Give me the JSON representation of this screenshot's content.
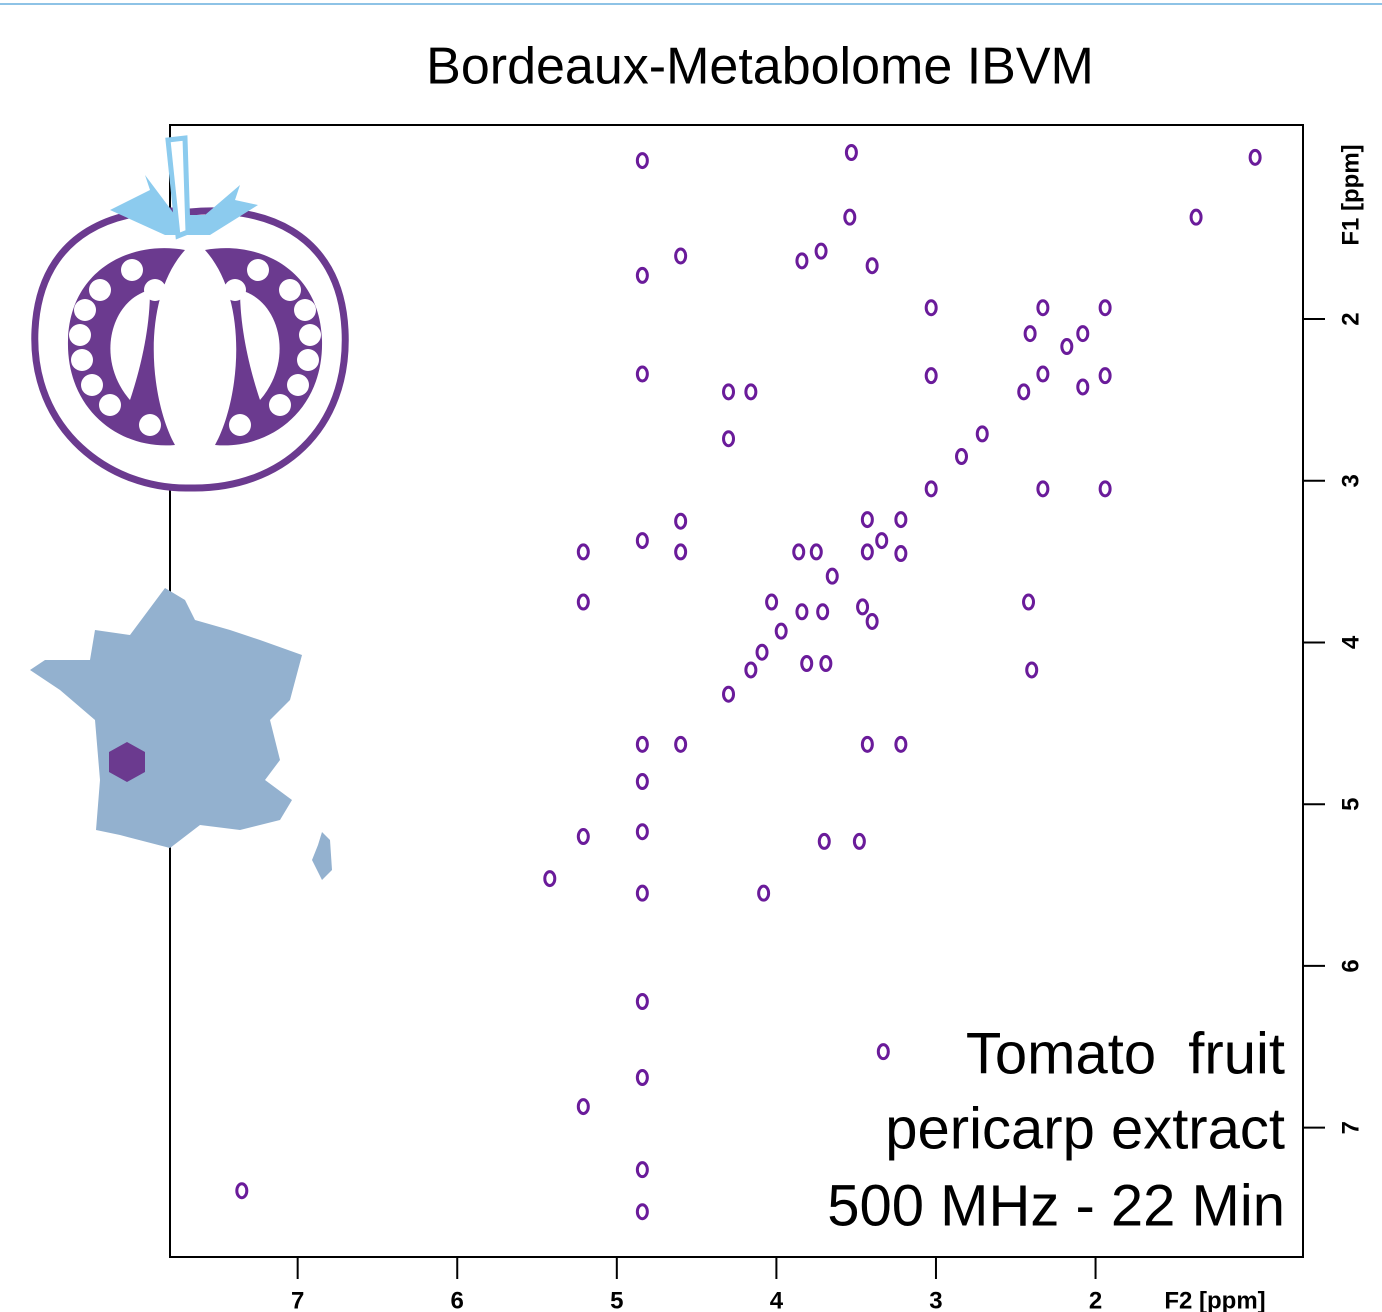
{
  "chart_data": {
    "type": "scatter",
    "title": "Bordeaux-Metabolome IBVM",
    "x_label": "F2 [ppm]",
    "y_label": "F1 [ppm]",
    "annotations": [
      "Tomato  fruit",
      "pericarp extract",
      "500 MHz - 22 Min"
    ],
    "xlim": [
      7.8,
      0.7
    ],
    "ylim": [
      0.8,
      7.8
    ],
    "xticks": [
      7,
      6,
      5,
      4,
      3,
      2
    ],
    "yticks": [
      2,
      3,
      4,
      5,
      6,
      7
    ],
    "color": "#6a1b9a",
    "x": [
      1.0,
      1.37,
      1.94,
      2.33,
      3.03,
      2.08,
      2.41,
      2.18,
      2.33,
      1.94,
      3.03,
      2.45,
      2.08,
      2.71,
      2.84,
      2.33,
      1.94,
      3.03,
      3.43,
      3.22,
      3.43,
      3.22,
      3.34,
      3.75,
      3.86,
      4.6,
      4.6,
      3.65,
      3.46,
      3.4,
      4.03,
      3.84,
      3.71,
      3.97,
      4.09,
      3.81,
      3.69,
      4.16,
      4.3,
      2.42,
      2.4,
      5.21,
      5.21,
      4.6,
      4.84,
      3.43,
      3.22,
      4.84,
      5.21,
      4.84,
      3.7,
      3.48,
      5.42,
      4.08,
      4.84,
      4.84,
      4.84,
      5.21,
      4.84,
      7.35,
      4.84,
      3.53,
      3.54,
      3.72,
      3.84,
      3.4,
      4.3,
      4.16,
      4.3,
      4.84,
      4.84,
      4.84,
      4.84,
      4.6,
      3.33
    ],
    "values": [
      1.0,
      1.37,
      1.93,
      1.93,
      1.93,
      2.09,
      2.09,
      2.17,
      2.34,
      2.35,
      2.35,
      2.45,
      2.42,
      2.71,
      2.85,
      3.05,
      3.05,
      3.05,
      3.24,
      3.24,
      3.44,
      3.45,
      3.37,
      3.44,
      3.44,
      3.25,
      3.44,
      3.59,
      3.78,
      3.87,
      3.75,
      3.81,
      3.81,
      3.93,
      4.06,
      4.13,
      4.13,
      4.17,
      4.32,
      3.75,
      4.17,
      3.44,
      3.75,
      4.63,
      4.63,
      4.63,
      4.63,
      4.86,
      5.2,
      5.17,
      5.23,
      5.23,
      5.46,
      5.55,
      5.55,
      6.22,
      6.69,
      6.87,
      7.26,
      7.39,
      7.52,
      0.97,
      1.37,
      1.58,
      1.64,
      1.67,
      2.45,
      2.45,
      2.74,
      1.02,
      1.73,
      2.34,
      3.37,
      1.61,
      6.53
    ]
  }
}
